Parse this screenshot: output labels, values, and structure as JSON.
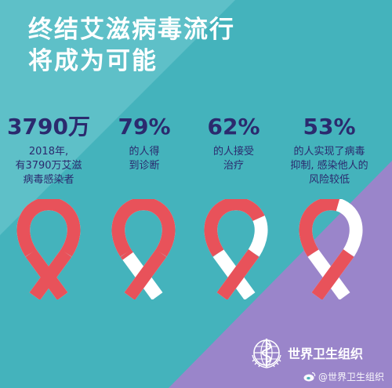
{
  "title": {
    "line1": "终结艾滋病毒流行",
    "line2": "将成为可能"
  },
  "stats": [
    {
      "value": "3790万",
      "desc": [
        "2018年,",
        "有3790万艾滋",
        "病毒感染者"
      ],
      "ribbon_progress": 1.0
    },
    {
      "value": "79%",
      "desc": [
        "的人得",
        "到诊断"
      ],
      "ribbon_progress": 0.79
    },
    {
      "value": "62%",
      "desc": [
        "的人接受",
        "治疗"
      ],
      "ribbon_progress": 0.62
    },
    {
      "value": "53%",
      "desc": [
        "的人实现了病毒",
        "抑制, 感染他人的",
        "风险较低"
      ],
      "ribbon_progress": 0.53
    }
  ],
  "logo": {
    "text": "世界卫生组织",
    "icon": "who-emblem-icon"
  },
  "watermark": {
    "text": "@世界卫生组织",
    "icon": "weibo-icon"
  },
  "colors": {
    "teal": "#44b3bc",
    "teal_light": "#74cbd2",
    "purple": "#9a85ca",
    "navy": "#2b2a6e",
    "ribbon_red": "#e8525a",
    "ribbon_white": "#ffffff"
  }
}
